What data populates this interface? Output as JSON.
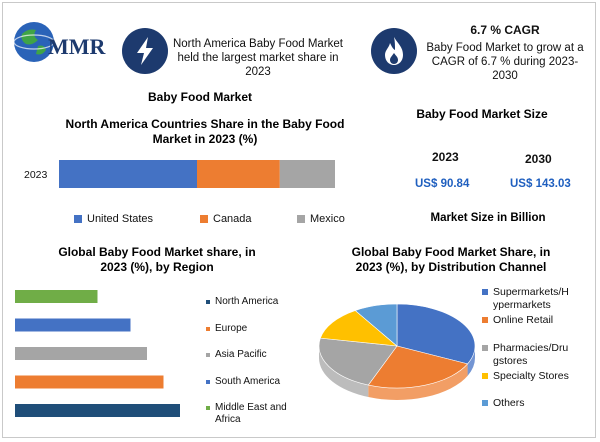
{
  "logo": {
    "text": "MMR"
  },
  "info_left": {
    "text": "North America Baby Food Market held the largest market share in 2023",
    "icon": "lightning-bolt"
  },
  "info_right": {
    "title": "6.7 % CAGR",
    "text": "Baby Food Market to grow at a CAGR of 6.7 % during 2023-2030",
    "icon": "flame"
  },
  "section_title": "Baby Food Market",
  "market_size": {
    "title": "Baby Food Market Size",
    "year1": "2023",
    "year2": "2030",
    "value1": "US$ 90.84",
    "value2": "US$ 143.03",
    "unit_note": "Market Size in Billion"
  },
  "colors": {
    "navy": "#1d3a6e",
    "value_blue": "#1f5fbf",
    "blue": "#4472c4",
    "orange": "#ed7d31",
    "gray": "#a5a5a5",
    "yellow": "#ffc000",
    "teal_blue": "#5b9bd5",
    "green": "#70ad47",
    "dark_blue": "#1f4e79"
  },
  "chart_data": [
    {
      "type": "bar",
      "orientation": "horizontal-stacked",
      "title": "North America Countries Share in the Baby Food Market in 2023 (%)",
      "categories": [
        "2023"
      ],
      "series": [
        {
          "name": "United States",
          "values": [
            50
          ],
          "color": "#4472c4"
        },
        {
          "name": "Canada",
          "values": [
            30
          ],
          "color": "#ed7d31"
        },
        {
          "name": "Mexico",
          "values": [
            20
          ],
          "color": "#a5a5a5"
        }
      ],
      "legend": "bottom"
    },
    {
      "type": "bar",
      "orientation": "horizontal",
      "title": "Global Baby Food Market share, in 2023 (%), by Region",
      "categories": [
        "Middle East and Africa",
        "South America",
        "Asia Pacific",
        "Europe",
        "North America"
      ],
      "values": [
        10,
        14,
        16,
        18,
        20
      ],
      "colors": [
        "#70ad47",
        "#4472c4",
        "#a5a5a5",
        "#ed7d31",
        "#1f4e79"
      ],
      "legend_order": [
        "North America",
        "Europe",
        "Asia Pacific",
        "South America",
        "Middle East and Africa"
      ],
      "legend_colors": [
        "#1f4e79",
        "#ed7d31",
        "#a5a5a5",
        "#4472c4",
        "#70ad47"
      ],
      "legend": "right"
    },
    {
      "type": "pie",
      "title": "Global Baby Food Market Share, in 2023 (%), by Distribution Channel",
      "categories": [
        "Supermarkets/Hypermarkets",
        "Online Retail",
        "Pharmacies/Drugstores",
        "Specialty Stores",
        "Others"
      ],
      "legend_labels": [
        "Supermarkets/H ypermarkets",
        "Online Retail",
        "Pharmacies/Dru gstores",
        "Specialty Stores",
        "Others"
      ],
      "values": [
        32,
        24,
        22,
        13,
        9
      ],
      "colors": [
        "#4472c4",
        "#ed7d31",
        "#a5a5a5",
        "#ffc000",
        "#5b9bd5"
      ],
      "legend": "right"
    }
  ]
}
